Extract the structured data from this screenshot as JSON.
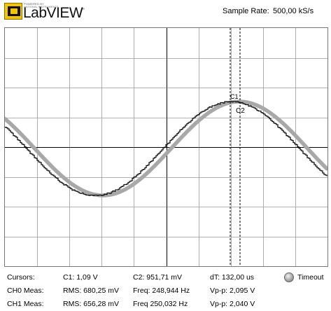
{
  "header": {
    "logo_text": "LabVIEW",
    "logo_small": "POWERED BY",
    "logo_small2": "NATIONAL INSTRUMENTS",
    "logo_tm": "™",
    "sample_rate_label": "Sample Rate:",
    "sample_rate_value": "500,00 kS/s"
  },
  "scope": {
    "cursor_labels": {
      "c1": "C1",
      "c2": "C2"
    },
    "colors": {
      "ch0": "#111111",
      "ch1": "#a8a8a8",
      "grid": "#9a9a9a",
      "axis": "#000000"
    }
  },
  "measurements": {
    "cursors": {
      "label": "Cursors:",
      "c1": "C1:  1,09 V",
      "c2": "C2:  951,71 mV",
      "dt": "dT:  132,00 us"
    },
    "ch0": {
      "label": "CH0 Meas:",
      "rms": "RMS:  680,25 mV",
      "freq": "Freq:  248,944 Hz",
      "vpp": "Vp-p:  2,095 V"
    },
    "ch1": {
      "label": "CH1 Meas:",
      "rms": "RMS:  656,28 mV",
      "freq": "Freq  250,032 Hz",
      "vpp": "Vp-p:  2,040 V"
    },
    "timeout_label": "Timeout"
  }
}
